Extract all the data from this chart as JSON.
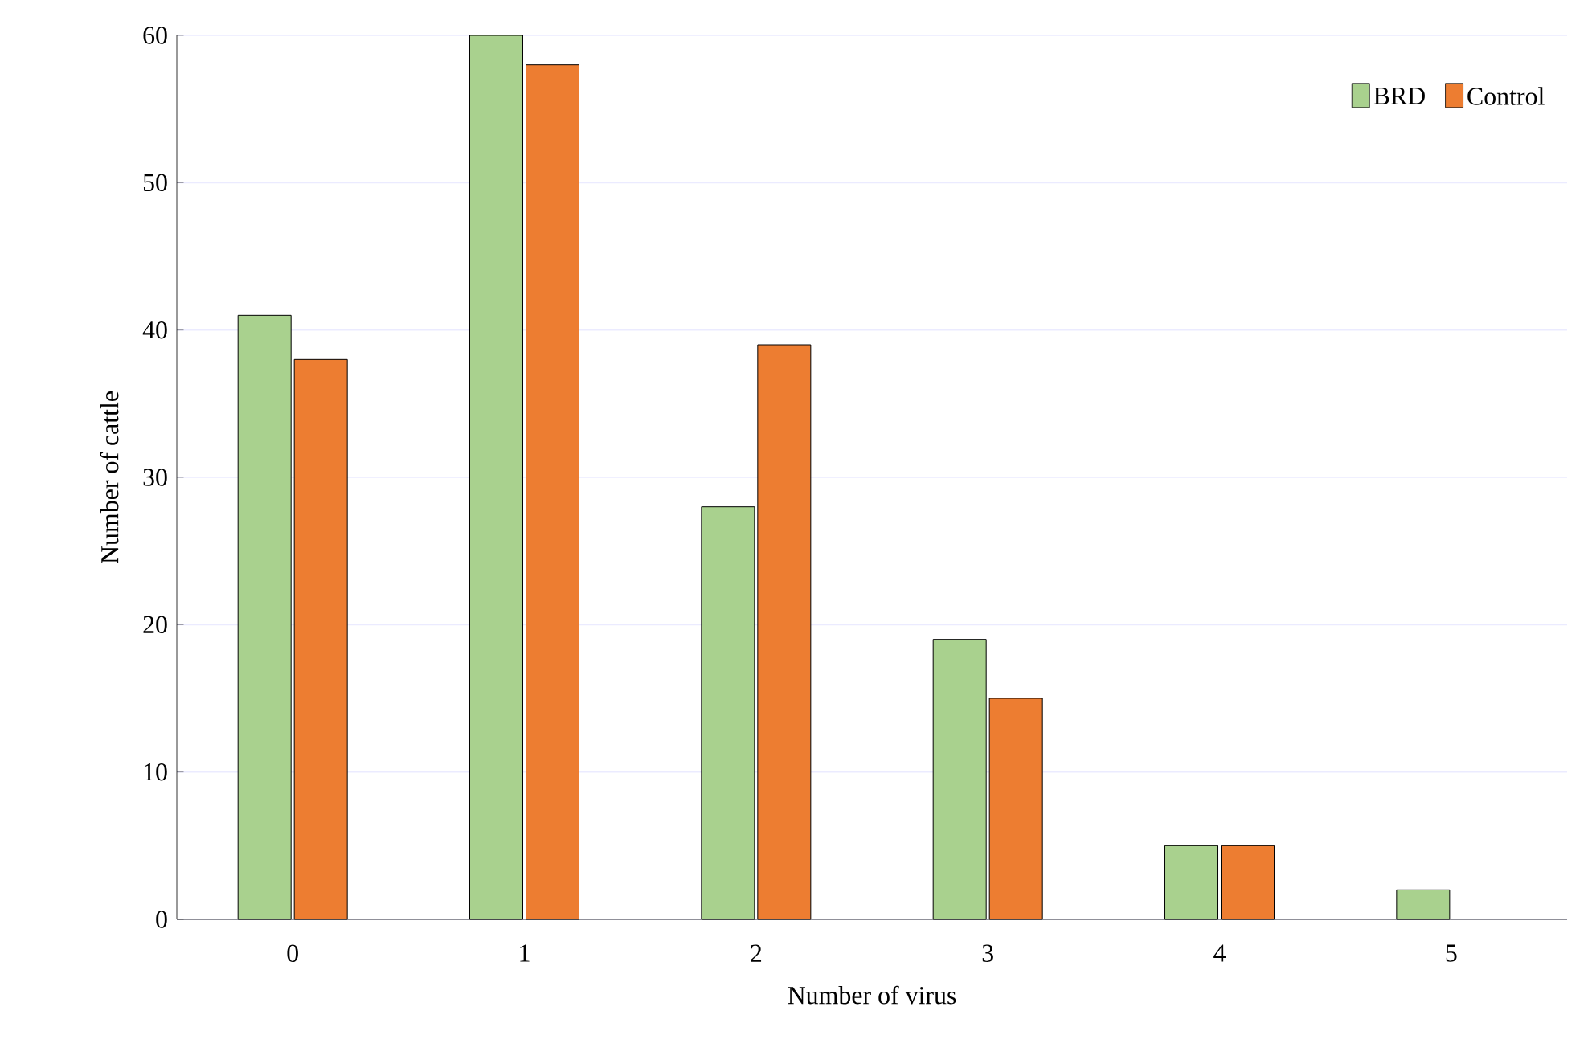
{
  "chart_data": {
    "type": "bar",
    "xlabel": "Number of virus",
    "ylabel": "Number of cattle",
    "categories": [
      "0",
      "1",
      "2",
      "3",
      "4",
      "5"
    ],
    "series": [
      {
        "name": "BRD",
        "color": "#a9d18e",
        "values": [
          41,
          60,
          28,
          19,
          5,
          2
        ]
      },
      {
        "name": "Control",
        "color": "#ed7d31",
        "values": [
          38,
          58,
          39,
          15,
          5,
          null
        ]
      }
    ],
    "ylim": [
      0,
      60
    ],
    "yticks": [
      0,
      10,
      20,
      30,
      40,
      50,
      60
    ],
    "grid": "y",
    "legend": "top right"
  }
}
